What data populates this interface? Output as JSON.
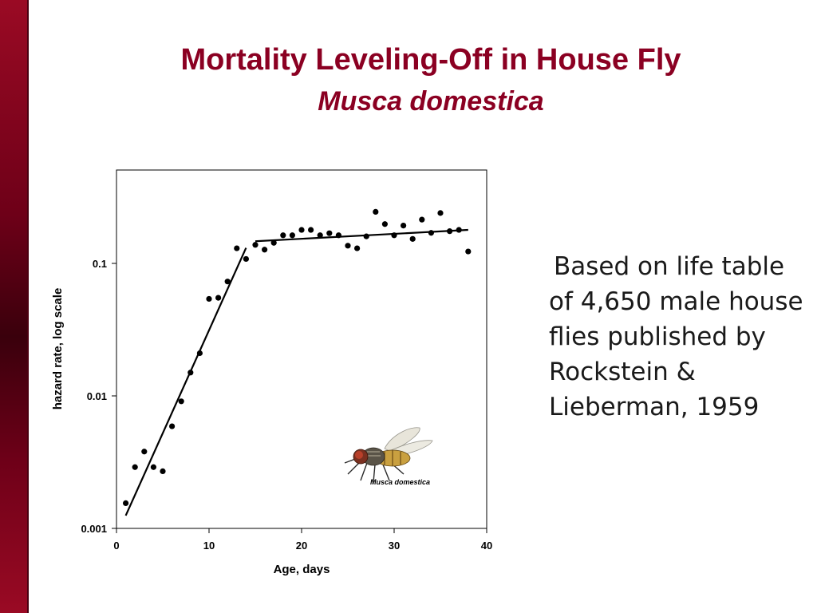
{
  "slide": {
    "title": "Mortality Leveling-Off in House Fly",
    "subtitle": "Musca domestica",
    "note": "Based on life table of 4,650 male house flies published by Rockstein & Lieberman, 1959",
    "accent_color": "#8b0022"
  },
  "chart_data": {
    "type": "scatter",
    "title": "",
    "xlabel": "Age, days",
    "ylabel": "hazard rate, log scale",
    "xlim": [
      0,
      40
    ],
    "ylim": [
      0.001,
      0.5
    ],
    "y_scale": "log",
    "grid": false,
    "x_ticks": [
      {
        "value": 0,
        "label": "0"
      },
      {
        "value": 10,
        "label": "10"
      },
      {
        "value": 20,
        "label": "20"
      },
      {
        "value": 30,
        "label": "30"
      },
      {
        "value": 40,
        "label": "40"
      }
    ],
    "y_ticks": [
      {
        "value": 0.001,
        "label": "0.001"
      },
      {
        "value": 0.01,
        "label": "0.01"
      },
      {
        "value": 0.1,
        "label": "0.1"
      }
    ],
    "points": [
      {
        "x": 1,
        "y": 0.00155
      },
      {
        "x": 2,
        "y": 0.0029
      },
      {
        "x": 3,
        "y": 0.0038
      },
      {
        "x": 4,
        "y": 0.0029
      },
      {
        "x": 5,
        "y": 0.0027
      },
      {
        "x": 6,
        "y": 0.0059
      },
      {
        "x": 7,
        "y": 0.0091
      },
      {
        "x": 8,
        "y": 0.015
      },
      {
        "x": 9,
        "y": 0.021
      },
      {
        "x": 10,
        "y": 0.054
      },
      {
        "x": 11,
        "y": 0.055
      },
      {
        "x": 12,
        "y": 0.073
      },
      {
        "x": 13,
        "y": 0.13
      },
      {
        "x": 14,
        "y": 0.108
      },
      {
        "x": 15,
        "y": 0.138
      },
      {
        "x": 16,
        "y": 0.127
      },
      {
        "x": 17,
        "y": 0.143
      },
      {
        "x": 18,
        "y": 0.163
      },
      {
        "x": 19,
        "y": 0.163
      },
      {
        "x": 20,
        "y": 0.179
      },
      {
        "x": 21,
        "y": 0.179
      },
      {
        "x": 22,
        "y": 0.163
      },
      {
        "x": 23,
        "y": 0.169
      },
      {
        "x": 24,
        "y": 0.163
      },
      {
        "x": 25,
        "y": 0.136
      },
      {
        "x": 26,
        "y": 0.13
      },
      {
        "x": 27,
        "y": 0.16
      },
      {
        "x": 28,
        "y": 0.245
      },
      {
        "x": 29,
        "y": 0.198
      },
      {
        "x": 30,
        "y": 0.163
      },
      {
        "x": 31,
        "y": 0.193
      },
      {
        "x": 32,
        "y": 0.153
      },
      {
        "x": 33,
        "y": 0.214
      },
      {
        "x": 34,
        "y": 0.17
      },
      {
        "x": 35,
        "y": 0.24
      },
      {
        "x": 36,
        "y": 0.175
      },
      {
        "x": 37,
        "y": 0.179
      },
      {
        "x": 38,
        "y": 0.123
      }
    ],
    "fit_lines": [
      {
        "x": [
          1,
          14
        ],
        "y": [
          0.00125,
          0.131
        ]
      },
      {
        "x": [
          15,
          38
        ],
        "y": [
          0.147,
          0.179
        ]
      }
    ],
    "inset_image_caption": "Musca domestica"
  }
}
